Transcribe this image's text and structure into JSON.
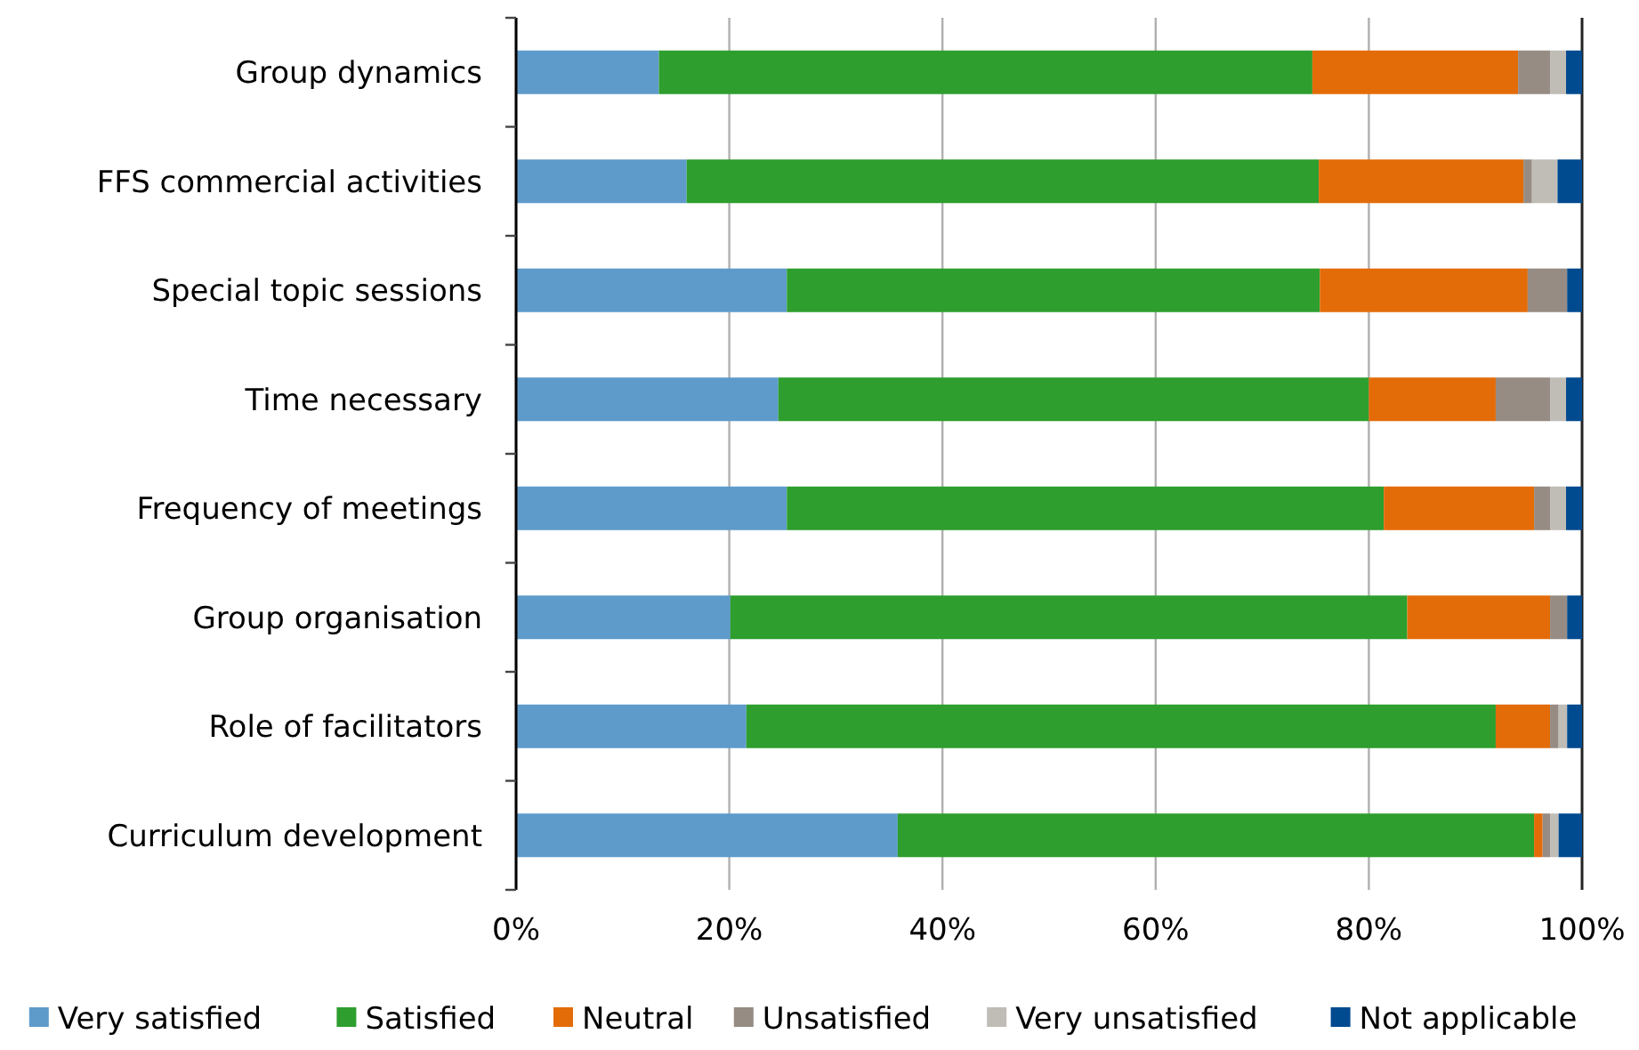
{
  "chart_data": {
    "type": "bar",
    "orientation": "horizontal",
    "stacked": true,
    "categories": [
      "Group dynamics",
      "FFS commercial activities",
      "Special topic sessions",
      "Time necessary",
      "Frequency of meetings",
      "Group organisation",
      "Role of facilitators",
      "Curriculum development"
    ],
    "series": [
      {
        "name": "Very satisfied",
        "color": "#5e9bcb",
        "values": [
          13.4,
          16.0,
          25.4,
          24.6,
          25.4,
          20.1,
          21.6,
          35.8
        ]
      },
      {
        "name": "Satisfied",
        "color": "#2e9e2e",
        "values": [
          61.3,
          59.3,
          50.0,
          55.4,
          56.0,
          63.5,
          70.3,
          59.7
        ]
      },
      {
        "name": "Neutral",
        "color": "#e36c09",
        "values": [
          19.3,
          19.2,
          19.5,
          11.9,
          14.1,
          13.4,
          5.1,
          0.8
        ]
      },
      {
        "name": "Unsatisfied",
        "color": "#968c83",
        "values": [
          3.0,
          0.8,
          3.7,
          5.1,
          1.5,
          1.6,
          0.8,
          0.7
        ]
      },
      {
        "name": "Very unsatisfied",
        "color": "#c0bcb6",
        "values": [
          1.5,
          2.4,
          0,
          1.5,
          1.5,
          0,
          0.8,
          0.8
        ]
      },
      {
        "name": "Not applicable",
        "color": "#004a8f",
        "values": [
          1.5,
          2.3,
          1.4,
          1.5,
          1.5,
          1.4,
          1.4,
          2.2
        ]
      }
    ],
    "xlim": [
      0,
      100
    ],
    "xticks": [
      {
        "value": 0,
        "label": "0%"
      },
      {
        "value": 20,
        "label": "20%"
      },
      {
        "value": 40,
        "label": "40%"
      },
      {
        "value": 60,
        "label": "60%"
      },
      {
        "value": 80,
        "label": "80%"
      },
      {
        "value": 100,
        "label": "100%"
      }
    ],
    "grid": "x",
    "legend": "bottom"
  }
}
